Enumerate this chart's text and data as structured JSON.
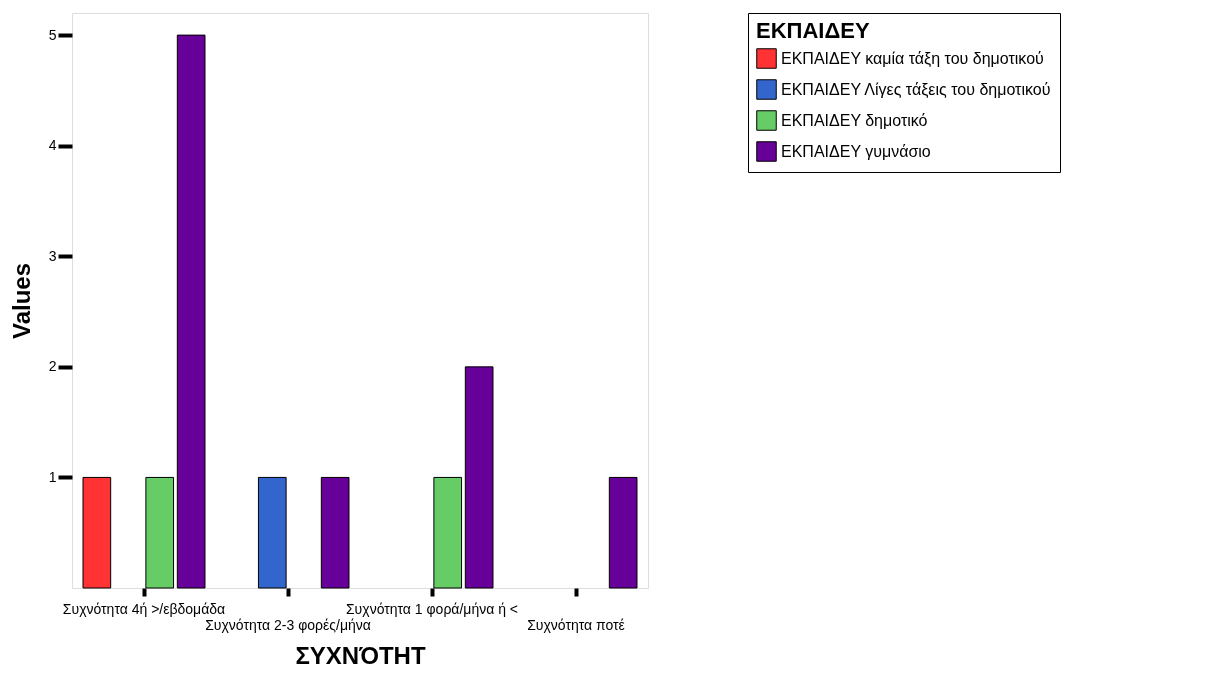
{
  "chart_data": {
    "type": "bar",
    "xlabel": "ΣΥΧΝΌΤΗΤ",
    "ylabel": "Values",
    "legend_title": "ΕΚΠΑΙΔΕΥ",
    "categories": [
      "Συχνότητα 4ή >/εβδομάδα",
      "Συχνότητα 2-3 φορές/μήνα",
      "Συχνότητα 1 φορά/μήνα ή <",
      "Συχνότητα ποτέ"
    ],
    "series": [
      {
        "name": "ΕΚΠΑΙΔΕΥ καμία τάξη του δημοτικού",
        "color": "#ff3333",
        "values": [
          1,
          null,
          null,
          null
        ]
      },
      {
        "name": "ΕΚΠΑΙΔΕΥ Λίγες τάξεις του δημοτικού",
        "color": "#3366cc",
        "values": [
          null,
          1,
          null,
          null
        ]
      },
      {
        "name": "ΕΚΠΑΙΔΕΥ δημοτικό",
        "color": "#66cc66",
        "values": [
          1,
          null,
          1,
          null
        ]
      },
      {
        "name": "ΕΚΠΑΙΔΕΥ γυμνάσιο",
        "color": "#660099",
        "values": [
          5,
          1,
          2,
          1
        ]
      }
    ],
    "ylim": [
      0,
      5.2
    ],
    "yticks": [
      1,
      2,
      3,
      4,
      5
    ],
    "grid": false,
    "legend": "right"
  }
}
